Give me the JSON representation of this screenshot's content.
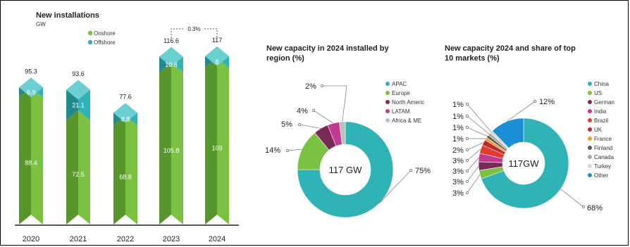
{
  "colors": {
    "onshore_front": "#7bc142",
    "onshore_side": "#57962a",
    "onshore_top": "#a2d56f",
    "offshore_front": "#2fb3b6",
    "offshore_side": "#218a8c",
    "offshore_top": "#6ad0d2",
    "axis": "#222222"
  },
  "chart_data": [
    {
      "type": "bar",
      "title": "New installations",
      "subtitle": "GW",
      "categories": [
        "2020",
        "2021",
        "2022",
        "2023",
        "2024"
      ],
      "series": [
        {
          "name": "Onshore",
          "values": [
            88.4,
            72.5,
            68.8,
            105.8,
            109
          ]
        },
        {
          "name": "Offshore",
          "values": [
            6.9,
            21.1,
            8.8,
            10.8,
            8
          ]
        }
      ],
      "totals": [
        95.3,
        93.6,
        77.6,
        116.6,
        117
      ],
      "value_labels": {
        "Onshore": [
          "88.4",
          "72.5",
          "68.8",
          "105.8",
          "109"
        ],
        "Offshore": [
          "6.9",
          "21.1",
          "8.8",
          "10.8",
          "8"
        ],
        "totals": [
          "95.3",
          "93.6",
          "77.6",
          "116.6",
          "117"
        ]
      },
      "annotation": "0.3%",
      "stacked": true,
      "legend_position": "top-center",
      "ylim": [
        0,
        117
      ],
      "grid": false
    },
    {
      "type": "pie",
      "donut": true,
      "title": "New capacity in 2024 installed by region (%)",
      "title_lines": [
        "New capacity in 2024 installed by",
        "region (%)"
      ],
      "center_label": "117 GW",
      "labels": [
        "APAC",
        "Europe",
        "North Americ",
        "LATAM",
        "Africa & ME"
      ],
      "values": [
        75,
        14,
        5,
        4,
        2
      ],
      "value_labels": [
        "75%",
        "14%",
        "5%",
        "4%",
        "2%"
      ],
      "colors": [
        "#2fb3b6",
        "#7bc142",
        "#7a2a58",
        "#c43a92",
        "#bfbfbf"
      ],
      "legend_position": "right"
    },
    {
      "type": "pie",
      "donut": true,
      "title": "New capacity 2024 and share of top 10 markets (%)",
      "title_lines": [
        "New capacity 2024 and share of top",
        "10 markets (%)"
      ],
      "center_label": "117GW",
      "labels": [
        "China",
        "US",
        "German",
        "India",
        "Brazil",
        "UK",
        "France",
        "Finland",
        "Canada",
        "Turkey",
        "Other"
      ],
      "values": [
        68,
        3,
        3,
        3,
        3,
        2,
        1,
        1,
        1,
        1,
        12
      ],
      "value_labels": [
        "68%",
        "3%",
        "3%",
        "3%",
        "3%",
        "2%",
        "1%",
        "1%",
        "1%",
        "1%",
        "12%"
      ],
      "colors": [
        "#2fb3b6",
        "#7bc142",
        "#7a2a58",
        "#c43a92",
        "#e23c30",
        "#c0282d",
        "#f39a2b",
        "#5a5a5a",
        "#a8a8a8",
        "#d9d9d9",
        "#1a8fd6"
      ],
      "legend_position": "right"
    }
  ]
}
